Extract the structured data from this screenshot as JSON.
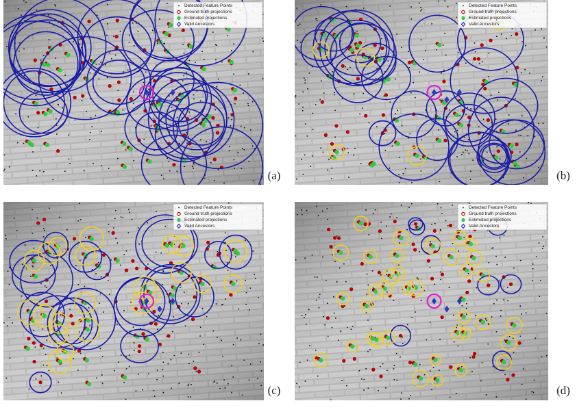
{
  "figure": {
    "legend": [
      "Detected Feature Points",
      "Ground truth projections",
      "Estimated projections",
      "Valid Ancestors"
    ],
    "panels": [
      {
        "label": "(a)"
      },
      {
        "label": "(b)"
      },
      {
        "label": "(c)"
      },
      {
        "label": "(d)"
      }
    ]
  }
}
